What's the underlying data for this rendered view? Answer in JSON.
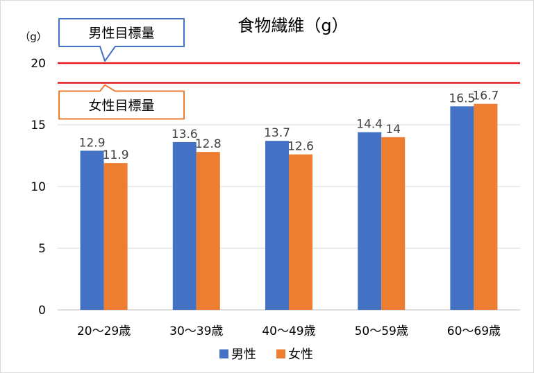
{
  "chart_data": {
    "type": "bar",
    "title": "食物繊維（g）",
    "ylabel": "（g）",
    "xlabel": "",
    "ylim": [
      0,
      20
    ],
    "yticks": [
      0,
      5,
      10,
      15,
      20
    ],
    "grid": true,
    "legend_position": "bottom",
    "categories": [
      "20～29歳",
      "30～39歳",
      "40～49歳",
      "50～59歳",
      "60～69歳"
    ],
    "series": [
      {
        "name": "男性",
        "color": "#4472c4",
        "values": [
          12.9,
          13.6,
          13.7,
          14.4,
          16.5
        ]
      },
      {
        "name": "女性",
        "color": "#ed7d31",
        "values": [
          11.9,
          12.8,
          12.6,
          14,
          16.7
        ]
      }
    ],
    "reference_lines": [
      {
        "label": "男性目標量",
        "value": 20,
        "color": "#e31a1c",
        "callout_border": "#4472c4"
      },
      {
        "label": "女性目標量",
        "value": 18.4,
        "color": "#e31a1c",
        "callout_border": "#ed7d31"
      }
    ]
  }
}
